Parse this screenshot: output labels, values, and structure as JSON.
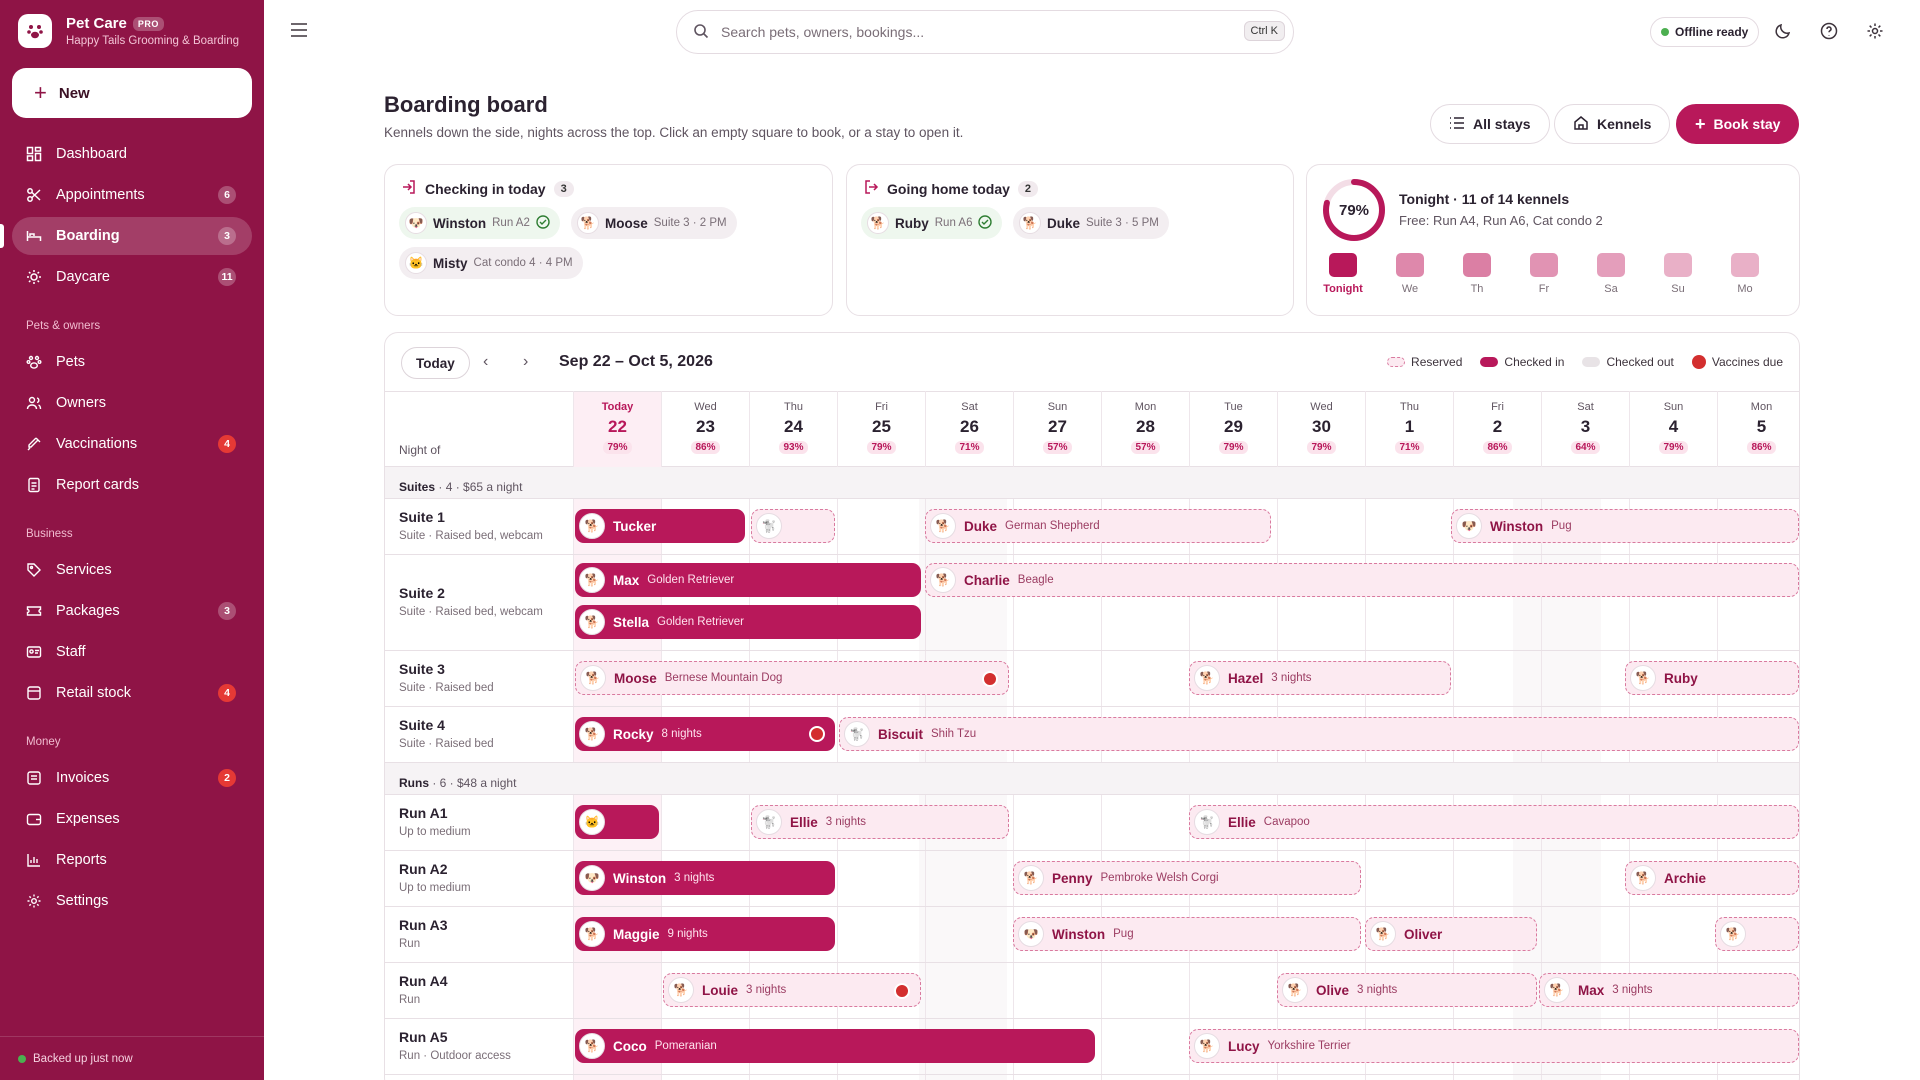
{
  "brand": {
    "name": "Pet Care",
    "badge": "PRO",
    "subtitle": "Happy Tails Grooming & Boarding"
  },
  "sidebar": {
    "new_label": "New",
    "items": [
      {
        "label": "Dashboard",
        "badge": ""
      },
      {
        "label": "Appointments",
        "badge": "6"
      },
      {
        "label": "Boarding",
        "badge": "3"
      },
      {
        "label": "Daycare",
        "badge": "11"
      }
    ],
    "sec_pets": "Pets & owners",
    "pets_items": [
      {
        "label": "Pets",
        "badge": ""
      },
      {
        "label": "Owners",
        "badge": ""
      },
      {
        "label": "Vaccinations",
        "badge": "4"
      },
      {
        "label": "Report cards",
        "badge": ""
      }
    ],
    "sec_business": "Business",
    "business_items": [
      {
        "label": "Services",
        "badge": ""
      },
      {
        "label": "Packages",
        "badge": "3"
      },
      {
        "label": "Staff",
        "badge": ""
      },
      {
        "label": "Retail stock",
        "badge": "4"
      }
    ],
    "sec_money": "Money",
    "money_items": [
      {
        "label": "Invoices",
        "badge": "2"
      },
      {
        "label": "Expenses",
        "badge": ""
      },
      {
        "label": "Reports",
        "badge": ""
      },
      {
        "label": "Settings",
        "badge": ""
      }
    ],
    "footer": "Backed up just now"
  },
  "topbar": {
    "search_placeholder": "Search pets, owners, bookings...",
    "shortcut": "Ctrl K",
    "status": "Offline ready"
  },
  "header": {
    "title": "Boarding board",
    "subtitle": "Kennels down the side, nights across the top. Click an empty square to book, or a stay to open it.",
    "btn_all": "All stays",
    "btn_kennels": "Kennels",
    "btn_book": "Book stay"
  },
  "checkin": {
    "title": "Checking in today",
    "count": "3",
    "chips": [
      {
        "name": "Winston",
        "meta": "Run A2"
      },
      {
        "name": "Moose",
        "meta": "Suite 3 · 2 PM"
      },
      {
        "name": "Misty",
        "meta": "Cat condo 4 · 4 PM"
      }
    ]
  },
  "goinghome": {
    "title": "Going home today",
    "count": "2",
    "chips": [
      {
        "name": "Ruby",
        "meta": "Run A6"
      },
      {
        "name": "Duke",
        "meta": "Suite 3 · 5 PM"
      }
    ]
  },
  "occupancy": {
    "pct": "79%",
    "pct_value": 0.79,
    "title": "Tonight · 11 of 14 kennels",
    "free": "Free: Run A4, Run A6, Cat condo 2",
    "days": [
      {
        "label": "Tonight",
        "level": 0.79
      },
      {
        "label": "We",
        "level": 0.86
      },
      {
        "label": "Th",
        "level": 0.93
      },
      {
        "label": "Fr",
        "level": 0.79
      },
      {
        "label": "Sa",
        "level": 0.71
      },
      {
        "label": "Su",
        "level": 0.57
      },
      {
        "label": "Mo",
        "level": 0.57
      }
    ]
  },
  "board": {
    "today_label": "Today",
    "range": "Sep 22 – Oct 5, 2026",
    "night_of": "Night of",
    "legend": {
      "reserved": "Reserved",
      "checked_in": "Checked in",
      "checked_out": "Checked out",
      "vaccines": "Vaccines due"
    },
    "days": [
      {
        "dow": "Today",
        "dn": "22",
        "pct": "79%"
      },
      {
        "dow": "Wed",
        "dn": "23",
        "pct": "86%"
      },
      {
        "dow": "Thu",
        "dn": "24",
        "pct": "93%"
      },
      {
        "dow": "Fri",
        "dn": "25",
        "pct": "79%"
      },
      {
        "dow": "Sat",
        "dn": "26",
        "pct": "71%"
      },
      {
        "dow": "Sun",
        "dn": "27",
        "pct": "57%"
      },
      {
        "dow": "Mon",
        "dn": "28",
        "pct": "57%"
      },
      {
        "dow": "Tue",
        "dn": "29",
        "pct": "79%"
      },
      {
        "dow": "Wed",
        "dn": "30",
        "pct": "79%"
      },
      {
        "dow": "Thu",
        "dn": "1",
        "pct": "71%"
      },
      {
        "dow": "Fri",
        "dn": "2",
        "pct": "86%"
      },
      {
        "dow": "Sat",
        "dn": "3",
        "pct": "64%"
      },
      {
        "dow": "Sun",
        "dn": "4",
        "pct": "79%"
      },
      {
        "dow": "Mon",
        "dn": "5",
        "pct": "86%"
      }
    ],
    "groups": {
      "suites": {
        "name": "Suites",
        "meta": "· 4 · $65 a night"
      },
      "runs": {
        "name": "Runs",
        "meta": "· 6 · $48 a night"
      }
    },
    "kennels": [
      {
        "name": "Suite 1",
        "desc": "Suite · Raised bed, webcam"
      },
      {
        "name": "Suite 2",
        "desc": "Suite · Raised bed, webcam"
      },
      {
        "name": "Suite 3",
        "desc": "Suite · Raised bed"
      },
      {
        "name": "Suite 4",
        "desc": "Suite · Raised bed"
      },
      {
        "name": "Run A1",
        "desc": "Up to medium"
      },
      {
        "name": "Run A2",
        "desc": "Up to medium"
      },
      {
        "name": "Run A3",
        "desc": "Run"
      },
      {
        "name": "Run A4",
        "desc": "Run"
      },
      {
        "name": "Run A5",
        "desc": "Run · Outdoor access"
      }
    ],
    "stays": [
      {
        "name": "Tucker",
        "meta": ""
      },
      {
        "name": "",
        "meta": ""
      },
      {
        "name": "Duke",
        "meta": "German Shepherd"
      },
      {
        "name": "Winston",
        "meta": "Pug"
      },
      {
        "name": "Max",
        "meta": "Golden Retriever"
      },
      {
        "name": "Charlie",
        "meta": "Beagle"
      },
      {
        "name": "Stella",
        "meta": "Golden Retriever"
      },
      {
        "name": "Moose",
        "meta": "Bernese Mountain Dog"
      },
      {
        "name": "Hazel",
        "meta": "3 nights"
      },
      {
        "name": "Ruby",
        "meta": ""
      },
      {
        "name": "Rocky",
        "meta": "8 nights"
      },
      {
        "name": "Biscuit",
        "meta": "Shih Tzu"
      },
      {
        "name": "",
        "meta": ""
      },
      {
        "name": "Ellie",
        "meta": "3 nights"
      },
      {
        "name": "Ellie",
        "meta": "Cavapoo"
      },
      {
        "name": "Winston",
        "meta": "3 nights"
      },
      {
        "name": "Penny",
        "meta": "Pembroke Welsh Corgi"
      },
      {
        "name": "Archie",
        "meta": ""
      },
      {
        "name": "Maggie",
        "meta": "9 nights"
      },
      {
        "name": "Winston",
        "meta": "Pug"
      },
      {
        "name": "Oliver",
        "meta": ""
      },
      {
        "name": "",
        "meta": ""
      },
      {
        "name": "Louie",
        "meta": "3 nights"
      },
      {
        "name": "Olive",
        "meta": "3 nights"
      },
      {
        "name": "Max",
        "meta": "3 nights"
      },
      {
        "name": "Coco",
        "meta": "Pomeranian"
      },
      {
        "name": "Lucy",
        "meta": "Yorkshire Terrier"
      }
    ]
  },
  "colors": {
    "brand": "#8f1446",
    "accent": "#b8185a",
    "reserved": "#fceaf1",
    "vaccine": "#d32f2f"
  }
}
